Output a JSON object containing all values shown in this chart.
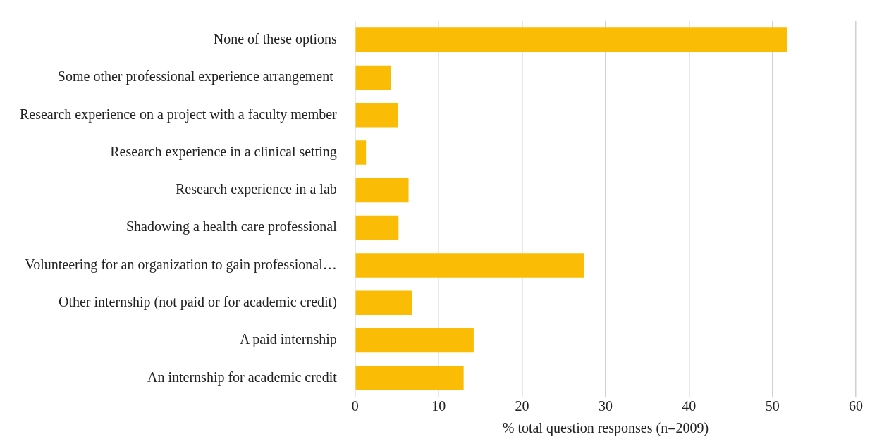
{
  "chart_data": {
    "type": "bar",
    "orientation": "horizontal",
    "xlabel": "% total question responses (n=2009)",
    "categories": [
      "None of these options",
      "Some other professional experience arrangement ",
      "Research experience on a project with a faculty member",
      "Research experience in a clinical setting",
      "Research experience in a lab",
      "Shadowing a health care professional",
      "Volunteering for an organization to gain professional…",
      "Other internship (not paid or for academic credit)",
      "A paid internship",
      "An internship for academic credit"
    ],
    "values": [
      51.8,
      4.3,
      5.1,
      1.3,
      6.4,
      5.2,
      27.4,
      6.8,
      14.2,
      13.0
    ],
    "color": "#fbbc05",
    "xlim": [
      0,
      60
    ],
    "xticks": [
      0,
      10,
      20,
      30,
      40,
      50,
      60
    ],
    "grid": "x"
  }
}
